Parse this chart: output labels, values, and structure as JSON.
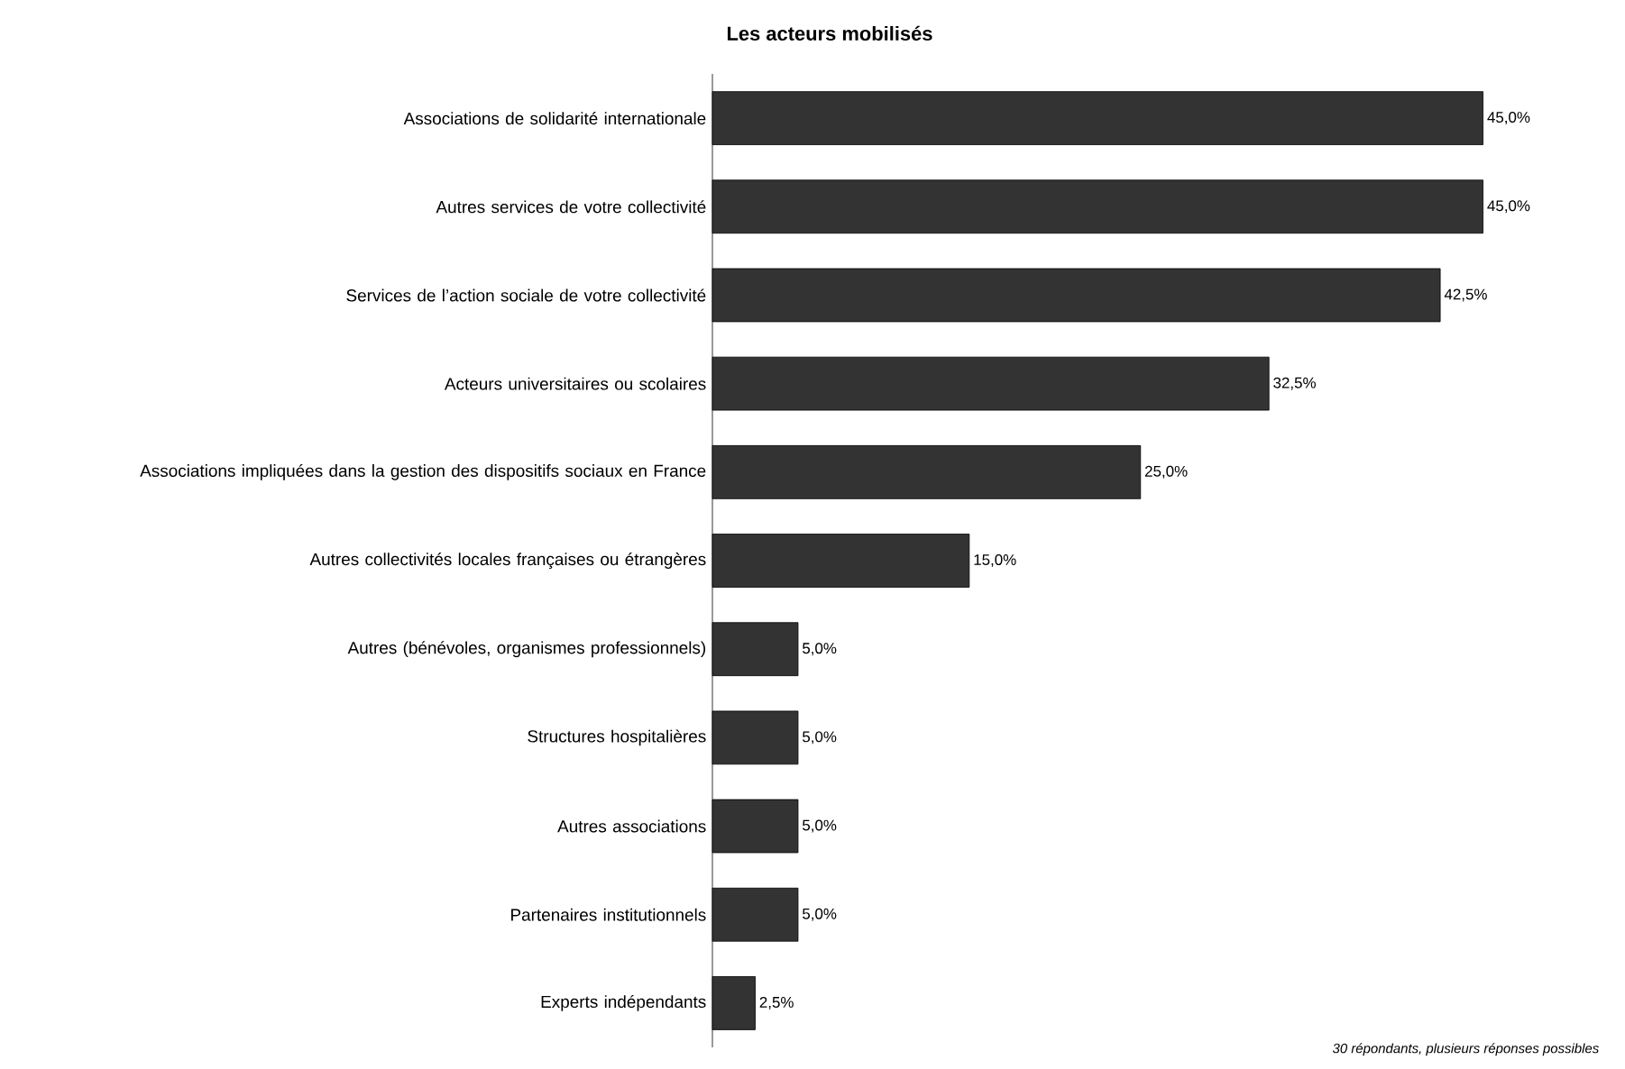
{
  "chart_data": {
    "type": "bar",
    "orientation": "horizontal",
    "title": "Les acteurs mobilisés",
    "categories": [
      "Associations de solidarité internationale",
      "Autres services de votre collectivité",
      "Services de l’action sociale de votre collectivité",
      "Acteurs universitaires ou scolaires",
      "Associations impliquées dans la gestion des dispositifs sociaux en France",
      "Autres collectivités locales françaises ou étrangères",
      "Autres (bénévoles, organismes professionnels)",
      "Structures hospitalières",
      "Autres associations",
      "Partenaires institutionnels",
      "Experts indépendants"
    ],
    "values": [
      45.0,
      45.0,
      42.5,
      32.5,
      25.0,
      15.0,
      5.0,
      5.0,
      5.0,
      5.0,
      2.5
    ],
    "value_labels": [
      "45,0%",
      "45,0%",
      "42,5%",
      "32,5%",
      "25,0%",
      "15,0%",
      "5,0%",
      "5,0%",
      "5,0%",
      "5,0%",
      "2,5%"
    ],
    "color": "#333333",
    "annotations": [
      "30 répondants, plusieurs réponses possibles"
    ]
  }
}
